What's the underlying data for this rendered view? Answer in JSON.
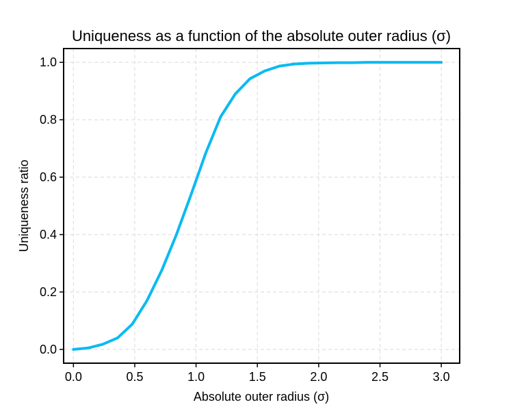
{
  "chart_data": {
    "type": "line",
    "title": "Uniqueness as a function of the absolute outer radius (σ)",
    "xlabel": "Absolute outer radius (σ)",
    "ylabel": "Uniqueness ratio",
    "xlim": [
      -0.08,
      3.15
    ],
    "ylim": [
      -0.048,
      1.048
    ],
    "xticks": [
      0.0,
      0.5,
      1.0,
      1.5,
      2.0,
      2.5,
      3.0
    ],
    "xtick_labels": [
      "0.0",
      "0.5",
      "1.0",
      "1.5",
      "2.0",
      "2.5",
      "3.0"
    ],
    "yticks": [
      0.0,
      0.2,
      0.4,
      0.6,
      0.8,
      1.0
    ],
    "ytick_labels": [
      "0.0",
      "0.2",
      "0.4",
      "0.6",
      "0.8",
      "1.0"
    ],
    "grid": true,
    "grid_style": "dashed",
    "line_color": "#0bbaf2",
    "series": [
      {
        "x": [
          0.0,
          0.12,
          0.24,
          0.36,
          0.48,
          0.6,
          0.72,
          0.84,
          0.96,
          1.08,
          1.2,
          1.32,
          1.44,
          1.56,
          1.68,
          1.8,
          1.92,
          2.04,
          2.16,
          2.28,
          2.4,
          2.52,
          2.64,
          2.76,
          2.88,
          3.0
        ],
        "y": [
          0.0,
          0.005,
          0.018,
          0.04,
          0.088,
          0.17,
          0.275,
          0.4,
          0.54,
          0.685,
          0.81,
          0.89,
          0.943,
          0.97,
          0.987,
          0.994,
          0.997,
          0.998,
          0.999,
          0.999,
          1.0,
          1.0,
          1.0,
          1.0,
          1.0,
          1.0
        ]
      }
    ]
  }
}
